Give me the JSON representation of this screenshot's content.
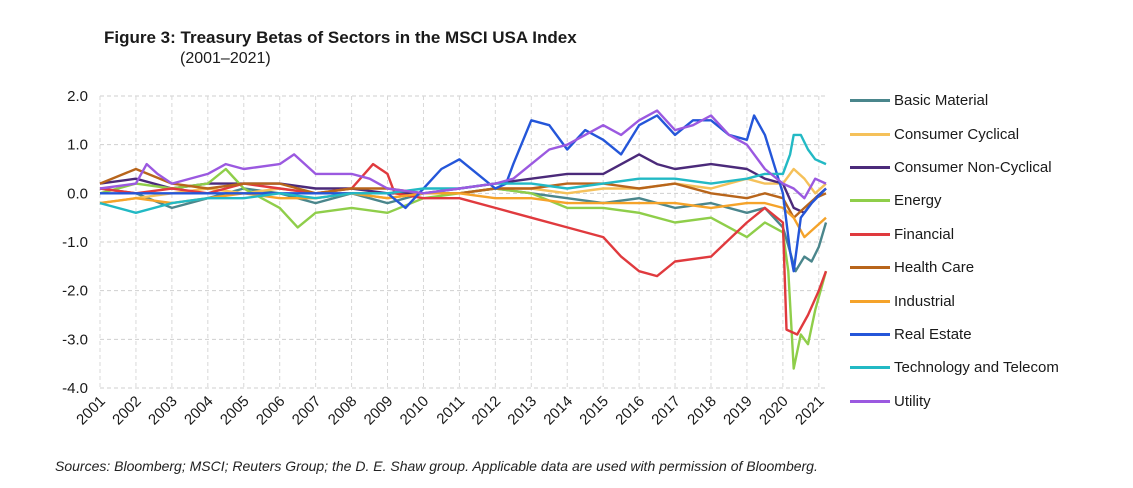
{
  "header": {
    "title": "Figure 3: Treasury Betas of Sectors in the MSCI USA Index",
    "subtitle": "(2001–2021)"
  },
  "footer": {
    "source": "Sources: Bloomberg; MSCI; Reuters Group; the D. E. Shaw group. Applicable data are used with permission of Bloomberg."
  },
  "chart_data": {
    "type": "line",
    "title": "Figure 3: Treasury Betas of Sectors in the MSCI USA Index",
    "subtitle": "(2001–2021)",
    "xlabel": "",
    "ylabel": "",
    "xlim": [
      2001,
      2021.2
    ],
    "ylim": [
      -4.0,
      2.0
    ],
    "x_ticks": [
      "2001",
      "2002",
      "2003",
      "2004",
      "2005",
      "2006",
      "2007",
      "2008",
      "2009",
      "2010",
      "2011",
      "2012",
      "2013",
      "2014",
      "2015",
      "2016",
      "2017",
      "2018",
      "2019",
      "2020",
      "2021"
    ],
    "y_ticks": [
      "2.0",
      "1.0",
      "0.0",
      "-1.0",
      "-2.0",
      "-3.0",
      "-4.0"
    ],
    "y_tick_values": [
      2,
      1,
      0,
      -1,
      -2,
      -3,
      -4
    ],
    "grid": true,
    "legend_position": "right",
    "series": [
      {
        "name": "Basic Material",
        "color": "#4a868c",
        "x": [
          2001,
          2002,
          2003,
          2004,
          2005,
          2006,
          2007,
          2008,
          2009,
          2010,
          2011,
          2012,
          2013,
          2014,
          2015,
          2016,
          2017,
          2018,
          2019,
          2019.5,
          2020,
          2020.2,
          2020.35,
          2020.6,
          2020.8,
          2021,
          2021.2
        ],
        "values": [
          0.1,
          0.0,
          -0.3,
          -0.1,
          0.1,
          0.0,
          -0.2,
          0.0,
          -0.2,
          0.0,
          0.0,
          0.1,
          0.0,
          -0.1,
          -0.2,
          -0.1,
          -0.3,
          -0.2,
          -0.4,
          -0.3,
          -0.7,
          -1.2,
          -1.6,
          -1.3,
          -1.4,
          -1.1,
          -0.6
        ]
      },
      {
        "name": "Consumer Cyclical",
        "color": "#f5c15a",
        "x": [
          2001,
          2002,
          2003,
          2004,
          2005,
          2006,
          2007,
          2008,
          2009,
          2010,
          2011,
          2012,
          2013,
          2014,
          2015,
          2016,
          2017,
          2018,
          2019,
          2019.5,
          2020,
          2020.3,
          2020.6,
          2020.9,
          2021.2
        ],
        "values": [
          -0.2,
          -0.1,
          0.0,
          0.1,
          0.0,
          0.1,
          0.0,
          0.0,
          -0.1,
          0.0,
          0.0,
          0.1,
          0.1,
          0.0,
          0.1,
          0.1,
          0.2,
          0.1,
          0.3,
          0.2,
          0.2,
          0.5,
          0.3,
          0.0,
          0.2
        ]
      },
      {
        "name": "Consumer Non-Cyclical",
        "color": "#4b2a7a",
        "x": [
          2001,
          2002,
          2003,
          2004,
          2005,
          2006,
          2007,
          2008,
          2009,
          2010,
          2011,
          2012,
          2013,
          2014,
          2015,
          2016,
          2016.5,
          2017,
          2018,
          2019,
          2019.5,
          2020,
          2020.3,
          2020.6,
          2020.9,
          2021.2
        ],
        "values": [
          0.2,
          0.3,
          0.1,
          0.2,
          0.2,
          0.2,
          0.1,
          0.1,
          0.0,
          0.0,
          0.1,
          0.2,
          0.3,
          0.4,
          0.4,
          0.8,
          0.6,
          0.5,
          0.6,
          0.5,
          0.3,
          0.2,
          -0.3,
          -0.4,
          -0.1,
          0.1
        ]
      },
      {
        "name": "Energy",
        "color": "#8fce4a",
        "x": [
          2001,
          2002,
          2003,
          2004,
          2004.5,
          2005,
          2006,
          2006.5,
          2007,
          2008,
          2009,
          2010,
          2011,
          2012,
          2013,
          2014,
          2015,
          2016,
          2017,
          2018,
          2019,
          2019.5,
          2020,
          2020.15,
          2020.3,
          2020.5,
          2020.7,
          2020.9,
          2021.2
        ],
        "values": [
          0.0,
          0.2,
          0.1,
          0.2,
          0.5,
          0.1,
          -0.3,
          -0.7,
          -0.4,
          -0.3,
          -0.4,
          -0.1,
          0.0,
          0.1,
          0.0,
          -0.3,
          -0.3,
          -0.4,
          -0.6,
          -0.5,
          -0.9,
          -0.6,
          -0.8,
          -1.6,
          -3.6,
          -2.9,
          -3.1,
          -2.4,
          -1.6
        ]
      },
      {
        "name": "Financial",
        "color": "#e03a3e",
        "x": [
          2001,
          2002,
          2003,
          2004,
          2005,
          2006,
          2007,
          2008,
          2008.6,
          2009,
          2009.2,
          2010,
          2011,
          2012,
          2013,
          2014,
          2015,
          2015.5,
          2016,
          2016.5,
          2017,
          2018,
          2019,
          2019.5,
          2020,
          2020.05,
          2020.1,
          2020.4,
          2020.7,
          2021,
          2021.2
        ],
        "values": [
          0.1,
          0.0,
          0.1,
          0.0,
          0.2,
          0.1,
          0.0,
          0.1,
          0.6,
          0.4,
          0.0,
          -0.1,
          -0.1,
          -0.3,
          -0.5,
          -0.7,
          -0.9,
          -1.3,
          -1.6,
          -1.7,
          -1.4,
          -1.3,
          -0.6,
          -0.3,
          -0.6,
          -1.7,
          -2.8,
          -2.9,
          -2.5,
          -2.0,
          -1.6
        ]
      },
      {
        "name": "Health Care",
        "color": "#b8651b",
        "x": [
          2001,
          2002,
          2003,
          2004,
          2005,
          2006,
          2007,
          2008,
          2009,
          2010,
          2011,
          2012,
          2013,
          2014,
          2015,
          2016,
          2017,
          2018,
          2019,
          2019.5,
          2020,
          2020.3,
          2020.6,
          2020.9,
          2021.2
        ],
        "values": [
          0.2,
          0.5,
          0.2,
          0.1,
          0.2,
          0.2,
          0.0,
          0.1,
          0.1,
          0.0,
          0.0,
          0.1,
          0.1,
          0.2,
          0.2,
          0.1,
          0.2,
          0.0,
          -0.1,
          0.0,
          -0.1,
          -0.5,
          -0.3,
          -0.1,
          0.0
        ]
      },
      {
        "name": "Industrial",
        "color": "#f5a32a",
        "x": [
          2001,
          2002,
          2003,
          2004,
          2005,
          2006,
          2007,
          2008,
          2009,
          2010,
          2011,
          2012,
          2013,
          2014,
          2015,
          2016,
          2017,
          2018,
          2019,
          2019.5,
          2020,
          2020.3,
          2020.6,
          2020.9,
          2021.2
        ],
        "values": [
          -0.2,
          -0.1,
          -0.2,
          -0.1,
          0.0,
          -0.1,
          -0.1,
          0.0,
          -0.1,
          0.0,
          0.0,
          -0.1,
          -0.1,
          -0.2,
          -0.2,
          -0.2,
          -0.2,
          -0.3,
          -0.2,
          -0.2,
          -0.3,
          -0.5,
          -0.9,
          -0.7,
          -0.5
        ]
      },
      {
        "name": "Real Estate",
        "color": "#2456d9",
        "x": [
          2001,
          2002,
          2003,
          2004,
          2005,
          2006,
          2007,
          2008,
          2009,
          2009.5,
          2010,
          2010.5,
          2011,
          2011.5,
          2012,
          2012.3,
          2012.5,
          2013,
          2013.5,
          2014,
          2014.5,
          2015,
          2015.5,
          2016,
          2016.5,
          2017,
          2017.5,
          2018,
          2018.5,
          2019,
          2019.2,
          2019.5,
          2020,
          2020.2,
          2020.3,
          2020.5,
          2020.8,
          2021.2
        ],
        "values": [
          0.0,
          0.0,
          0.0,
          0.0,
          0.0,
          0.0,
          0.0,
          0.0,
          0.0,
          -0.3,
          0.1,
          0.5,
          0.7,
          0.4,
          0.1,
          0.2,
          0.6,
          1.5,
          1.4,
          0.9,
          1.3,
          1.1,
          0.8,
          1.4,
          1.6,
          1.2,
          1.5,
          1.5,
          1.2,
          1.1,
          1.6,
          1.2,
          0.0,
          -1.2,
          -1.6,
          -0.5,
          -0.2,
          0.1
        ]
      },
      {
        "name": "Technology and Telecom",
        "color": "#22b9c4",
        "x": [
          2001,
          2002,
          2003,
          2004,
          2005,
          2006,
          2007,
          2008,
          2009,
          2010,
          2011,
          2012,
          2013,
          2014,
          2015,
          2016,
          2017,
          2018,
          2019,
          2019.5,
          2020,
          2020.2,
          2020.3,
          2020.5,
          2020.7,
          2020.9,
          2021.2
        ],
        "values": [
          -0.2,
          -0.4,
          -0.2,
          -0.1,
          -0.1,
          0.0,
          -0.1,
          0.0,
          0.0,
          0.1,
          0.1,
          0.2,
          0.2,
          0.1,
          0.2,
          0.3,
          0.3,
          0.2,
          0.3,
          0.4,
          0.4,
          0.8,
          1.2,
          1.2,
          0.9,
          0.7,
          0.6
        ]
      },
      {
        "name": "Utility",
        "color": "#9b59e0",
        "x": [
          2001,
          2002,
          2002.3,
          2002.6,
          2003,
          2004,
          2004.5,
          2005,
          2006,
          2006.4,
          2007,
          2008,
          2008.5,
          2009,
          2010,
          2011,
          2012,
          2012.5,
          2013,
          2013.5,
          2014,
          2014.5,
          2015,
          2015.5,
          2016,
          2016.5,
          2017,
          2017.5,
          2018,
          2018.5,
          2019,
          2019.5,
          2020,
          2020.3,
          2020.6,
          2020.9,
          2021.2
        ],
        "values": [
          0.1,
          0.2,
          0.6,
          0.4,
          0.2,
          0.4,
          0.6,
          0.5,
          0.6,
          0.8,
          0.4,
          0.4,
          0.3,
          0.1,
          0.0,
          0.1,
          0.2,
          0.3,
          0.6,
          0.9,
          1.0,
          1.2,
          1.4,
          1.2,
          1.5,
          1.7,
          1.3,
          1.4,
          1.6,
          1.2,
          1.0,
          0.5,
          0.2,
          0.1,
          -0.1,
          0.3,
          0.2
        ]
      }
    ]
  }
}
